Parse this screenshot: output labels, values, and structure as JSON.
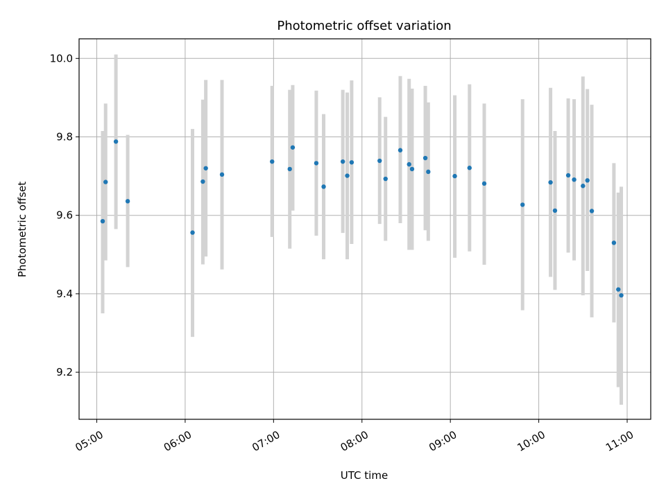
{
  "chart_data": {
    "type": "scatter",
    "title": "Photometric offset variation",
    "xlabel": "UTC time",
    "ylabel": "Photometric offset",
    "x_axis": "time",
    "xlim": [
      "04:48",
      "11:16"
    ],
    "ylim": [
      9.08,
      10.05
    ],
    "xticks": [
      "05:00",
      "06:00",
      "07:00",
      "08:00",
      "09:00",
      "10:00",
      "11:00"
    ],
    "yticks": [
      9.2,
      9.4,
      9.6,
      9.8,
      10.0
    ],
    "grid": true,
    "legend": "none",
    "point_color": "#1f77b4",
    "errorbar_color": "#d3d3d3",
    "points": [
      {
        "x": "05:04",
        "y": 9.585,
        "ylow": 9.35,
        "yhigh": 9.815
      },
      {
        "x": "05:06",
        "y": 9.685,
        "ylow": 9.485,
        "yhigh": 9.885
      },
      {
        "x": "05:13",
        "y": 9.788,
        "ylow": 9.565,
        "yhigh": 10.01
      },
      {
        "x": "05:21",
        "y": 9.636,
        "ylow": 9.468,
        "yhigh": 9.805
      },
      {
        "x": "06:05",
        "y": 9.556,
        "ylow": 9.29,
        "yhigh": 9.82
      },
      {
        "x": "06:12",
        "y": 9.686,
        "ylow": 9.475,
        "yhigh": 9.895
      },
      {
        "x": "06:14",
        "y": 9.72,
        "ylow": 9.495,
        "yhigh": 9.945
      },
      {
        "x": "06:25",
        "y": 9.704,
        "ylow": 9.462,
        "yhigh": 9.945
      },
      {
        "x": "06:59",
        "y": 9.737,
        "ylow": 9.545,
        "yhigh": 9.93
      },
      {
        "x": "07:11",
        "y": 9.718,
        "ylow": 9.515,
        "yhigh": 9.92
      },
      {
        "x": "07:13",
        "y": 9.773,
        "ylow": 9.612,
        "yhigh": 9.932
      },
      {
        "x": "07:29",
        "y": 9.733,
        "ylow": 9.548,
        "yhigh": 9.918
      },
      {
        "x": "07:34",
        "y": 9.673,
        "ylow": 9.488,
        "yhigh": 9.858
      },
      {
        "x": "07:47",
        "y": 9.737,
        "ylow": 9.555,
        "yhigh": 9.92
      },
      {
        "x": "07:50",
        "y": 9.701,
        "ylow": 9.488,
        "yhigh": 9.913
      },
      {
        "x": "07:53",
        "y": 9.735,
        "ylow": 9.527,
        "yhigh": 9.944
      },
      {
        "x": "08:12",
        "y": 9.739,
        "ylow": 9.578,
        "yhigh": 9.901
      },
      {
        "x": "08:16",
        "y": 9.693,
        "ylow": 9.535,
        "yhigh": 9.851
      },
      {
        "x": "08:26",
        "y": 9.766,
        "ylow": 9.58,
        "yhigh": 9.955
      },
      {
        "x": "08:32",
        "y": 9.73,
        "ylow": 9.512,
        "yhigh": 9.948
      },
      {
        "x": "08:34",
        "y": 9.718,
        "ylow": 9.512,
        "yhigh": 9.923
      },
      {
        "x": "08:43",
        "y": 9.746,
        "ylow": 9.562,
        "yhigh": 9.93
      },
      {
        "x": "08:45",
        "y": 9.711,
        "ylow": 9.535,
        "yhigh": 9.888
      },
      {
        "x": "09:03",
        "y": 9.7,
        "ylow": 9.492,
        "yhigh": 9.906
      },
      {
        "x": "09:13",
        "y": 9.721,
        "ylow": 9.508,
        "yhigh": 9.934
      },
      {
        "x": "09:23",
        "y": 9.681,
        "ylow": 9.474,
        "yhigh": 9.885
      },
      {
        "x": "09:49",
        "y": 9.627,
        "ylow": 9.358,
        "yhigh": 9.896
      },
      {
        "x": "10:08",
        "y": 9.684,
        "ylow": 9.443,
        "yhigh": 9.925
      },
      {
        "x": "10:11",
        "y": 9.612,
        "ylow": 9.41,
        "yhigh": 9.815
      },
      {
        "x": "10:20",
        "y": 9.702,
        "ylow": 9.505,
        "yhigh": 9.898
      },
      {
        "x": "10:24",
        "y": 9.691,
        "ylow": 9.485,
        "yhigh": 9.896
      },
      {
        "x": "10:30",
        "y": 9.675,
        "ylow": 9.396,
        "yhigh": 9.954
      },
      {
        "x": "10:33",
        "y": 9.689,
        "ylow": 9.458,
        "yhigh": 9.922
      },
      {
        "x": "10:36",
        "y": 9.611,
        "ylow": 9.34,
        "yhigh": 9.882
      },
      {
        "x": "10:51",
        "y": 9.53,
        "ylow": 9.327,
        "yhigh": 9.733
      },
      {
        "x": "10:54",
        "y": 9.411,
        "ylow": 9.162,
        "yhigh": 9.658
      },
      {
        "x": "10:56",
        "y": 9.396,
        "ylow": 9.117,
        "yhigh": 9.673
      }
    ]
  }
}
